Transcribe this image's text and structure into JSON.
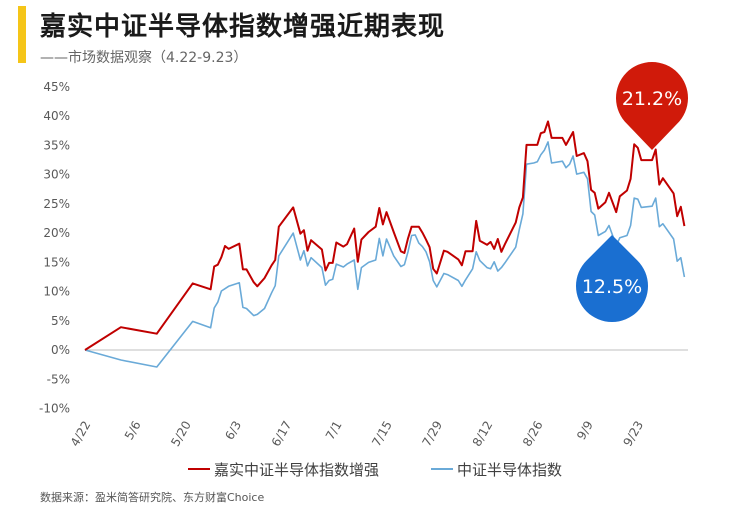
{
  "header": {
    "title": "嘉实中证半导体指数增强近期表现",
    "subtitle": "——市场数据观察（4.22-9.23）"
  },
  "footer": {
    "source": "数据来源：盈米简答研究院、东方财富Choice"
  },
  "colors": {
    "accent": "#f5c518",
    "series_enhanced": "#c00000",
    "series_index": "#6aaad8",
    "badge_red": "#d01a0a",
    "badge_blue": "#1a6fd1",
    "axis": "#bfbfbf",
    "tick_text": "#595959"
  },
  "callouts": {
    "enhanced": "21.2%",
    "index": "12.5%"
  },
  "chart_data": {
    "type": "line",
    "x_tick_labels": [
      "4/22",
      "5/6",
      "5/20",
      "6/3",
      "6/17",
      "7/1",
      "7/15",
      "7/29",
      "8/12",
      "8/26",
      "9/9",
      "9/23"
    ],
    "y_tick_labels": [
      "-10%",
      "-5%",
      "0%",
      "5%",
      "10%",
      "15%",
      "20%",
      "25%",
      "30%",
      "35%",
      "40%",
      "45%"
    ],
    "ylim": [
      -10,
      45
    ],
    "grid": false,
    "legend_position": "bottom",
    "series": [
      {
        "name": "嘉实中证半导体指数增强",
        "values": [
          [
            0,
            0
          ],
          [
            10,
            3.9
          ],
          [
            20,
            2.8
          ],
          [
            30,
            11.4
          ],
          [
            35,
            10.4
          ],
          [
            36,
            14.3
          ],
          [
            37,
            14.6
          ],
          [
            38,
            15.9
          ],
          [
            39,
            17.8
          ],
          [
            40,
            17.3
          ],
          [
            43,
            18.2
          ],
          [
            44,
            13.8
          ],
          [
            45,
            13.8
          ],
          [
            47,
            11.6
          ],
          [
            48,
            10.9
          ],
          [
            50,
            12.3
          ],
          [
            52,
            14.5
          ],
          [
            53,
            15.4
          ],
          [
            54,
            21.1
          ],
          [
            58,
            24.4
          ],
          [
            60,
            19.9
          ],
          [
            61,
            20.5
          ],
          [
            62,
            17.0
          ],
          [
            63,
            18.8
          ],
          [
            66,
            17.2
          ],
          [
            67,
            13.6
          ],
          [
            68,
            14.9
          ],
          [
            69,
            14.9
          ],
          [
            70,
            18.4
          ],
          [
            72,
            17.7
          ],
          [
            73,
            18.1
          ],
          [
            75,
            20.8
          ],
          [
            76,
            15.1
          ],
          [
            77,
            18.9
          ],
          [
            79,
            20.2
          ],
          [
            81,
            21.1
          ],
          [
            82,
            24.3
          ],
          [
            83,
            21.5
          ],
          [
            84,
            23.6
          ],
          [
            86,
            20.2
          ],
          [
            88,
            16.9
          ],
          [
            89,
            16.6
          ],
          [
            90,
            19.1
          ],
          [
            91,
            21.1
          ],
          [
            92,
            21.1
          ],
          [
            93,
            21.1
          ],
          [
            94,
            20.1
          ],
          [
            95,
            18.9
          ],
          [
            96,
            17.6
          ],
          [
            97,
            13.9
          ],
          [
            98,
            13.1
          ],
          [
            100,
            17.0
          ],
          [
            101,
            16.8
          ],
          [
            104,
            15.5
          ],
          [
            105,
            14.5
          ],
          [
            106,
            16.9
          ],
          [
            108,
            16.9
          ],
          [
            109,
            22.1
          ],
          [
            110,
            18.7
          ],
          [
            112,
            18.0
          ],
          [
            113,
            18.5
          ],
          [
            114,
            17.3
          ],
          [
            115,
            19.0
          ],
          [
            116,
            16.8
          ],
          [
            117,
            18.1
          ],
          [
            120,
            21.8
          ],
          [
            121,
            24.4
          ],
          [
            122,
            26.1
          ],
          [
            123,
            35.1
          ],
          [
            125,
            35.1
          ],
          [
            126,
            35.1
          ],
          [
            127,
            37.1
          ],
          [
            128,
            37.3
          ],
          [
            129,
            39.1
          ],
          [
            130,
            36.3
          ],
          [
            133,
            36.3
          ],
          [
            134,
            35.1
          ],
          [
            135,
            36.2
          ],
          [
            136,
            37.3
          ],
          [
            137,
            33.2
          ],
          [
            139,
            33.7
          ],
          [
            140,
            32.3
          ],
          [
            141,
            27.4
          ],
          [
            142,
            26.9
          ],
          [
            143,
            24.2
          ],
          [
            145,
            25.3
          ],
          [
            146,
            26.9
          ],
          [
            148,
            23.6
          ],
          [
            149,
            26.3
          ],
          [
            151,
            27.3
          ],
          [
            152,
            29.3
          ],
          [
            153,
            35.2
          ],
          [
            154,
            34.6
          ],
          [
            155,
            32.5
          ],
          [
            158,
            32.5
          ],
          [
            159,
            34.3
          ],
          [
            160,
            28.3
          ],
          [
            161,
            29.4
          ],
          [
            164,
            26.8
          ],
          [
            165,
            22.9
          ],
          [
            166,
            24.5
          ],
          [
            167,
            21.2
          ]
        ]
      },
      {
        "name": "中证半导体指数",
        "values": [
          [
            0,
            0
          ],
          [
            10,
            -1.7
          ],
          [
            20,
            -2.9
          ],
          [
            30,
            4.9
          ],
          [
            35,
            3.8
          ],
          [
            36,
            7.2
          ],
          [
            37,
            8.2
          ],
          [
            38,
            10.1
          ],
          [
            39,
            10.5
          ],
          [
            40,
            10.9
          ],
          [
            43,
            11.5
          ],
          [
            44,
            7.3
          ],
          [
            45,
            7.1
          ],
          [
            47,
            5.9
          ],
          [
            48,
            6.1
          ],
          [
            50,
            7.1
          ],
          [
            52,
            9.8
          ],
          [
            53,
            11.0
          ],
          [
            54,
            16.1
          ],
          [
            58,
            20.0
          ],
          [
            60,
            15.4
          ],
          [
            61,
            17.0
          ],
          [
            62,
            14.4
          ],
          [
            63,
            15.8
          ],
          [
            66,
            14.1
          ],
          [
            67,
            11.1
          ],
          [
            68,
            11.9
          ],
          [
            69,
            12.1
          ],
          [
            70,
            14.7
          ],
          [
            72,
            14.2
          ],
          [
            73,
            14.7
          ],
          [
            75,
            15.4
          ],
          [
            76,
            10.4
          ],
          [
            77,
            14.1
          ],
          [
            79,
            15.0
          ],
          [
            81,
            15.4
          ],
          [
            82,
            19.1
          ],
          [
            83,
            16.1
          ],
          [
            84,
            19.0
          ],
          [
            86,
            16.1
          ],
          [
            88,
            14.3
          ],
          [
            89,
            14.6
          ],
          [
            90,
            16.8
          ],
          [
            91,
            19.6
          ],
          [
            92,
            19.7
          ],
          [
            93,
            18.3
          ],
          [
            94,
            17.7
          ],
          [
            95,
            16.8
          ],
          [
            96,
            15.1
          ],
          [
            97,
            11.9
          ],
          [
            98,
            10.8
          ],
          [
            100,
            13.1
          ],
          [
            101,
            12.9
          ],
          [
            104,
            11.9
          ],
          [
            105,
            10.9
          ],
          [
            106,
            12.0
          ],
          [
            108,
            13.9
          ],
          [
            109,
            16.8
          ],
          [
            110,
            15.3
          ],
          [
            112,
            14.1
          ],
          [
            113,
            13.9
          ],
          [
            114,
            15.1
          ],
          [
            115,
            13.5
          ],
          [
            116,
            14.1
          ],
          [
            117,
            14.9
          ],
          [
            120,
            17.6
          ],
          [
            121,
            20.6
          ],
          [
            122,
            23.3
          ],
          [
            123,
            31.8
          ],
          [
            125,
            32.0
          ],
          [
            126,
            32.2
          ],
          [
            127,
            33.4
          ],
          [
            128,
            34.2
          ],
          [
            129,
            35.6
          ],
          [
            130,
            32.0
          ],
          [
            133,
            32.3
          ],
          [
            134,
            31.2
          ],
          [
            135,
            31.8
          ],
          [
            136,
            33.2
          ],
          [
            137,
            30.1
          ],
          [
            139,
            30.4
          ],
          [
            140,
            29.3
          ],
          [
            141,
            23.7
          ],
          [
            142,
            23.1
          ],
          [
            143,
            19.6
          ],
          [
            145,
            20.3
          ],
          [
            146,
            21.3
          ],
          [
            148,
            17.9
          ],
          [
            149,
            19.2
          ],
          [
            151,
            19.6
          ],
          [
            152,
            21.3
          ],
          [
            153,
            26.0
          ],
          [
            154,
            25.8
          ],
          [
            155,
            24.4
          ],
          [
            158,
            24.6
          ],
          [
            159,
            26.0
          ],
          [
            160,
            21.1
          ],
          [
            161,
            21.6
          ],
          [
            164,
            19.0
          ],
          [
            165,
            15.2
          ],
          [
            166,
            15.8
          ],
          [
            167,
            12.5
          ]
        ]
      }
    ]
  }
}
